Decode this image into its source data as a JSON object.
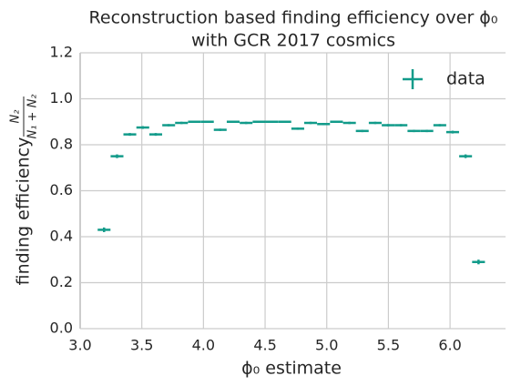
{
  "chart_data": {
    "type": "errorbar",
    "title": "Reconstruction based finding efficiency over ϕ₀",
    "subtitle": "with GCR 2017 cosmics",
    "xlabel": "ϕ₀ estimate",
    "ylabel": "finding efficiency",
    "ylabel_numerator": "N₂",
    "ylabel_denominator": "N₁ + N₂",
    "x": [
      3.194,
      3.299,
      3.403,
      3.508,
      3.613,
      3.718,
      3.822,
      3.927,
      4.032,
      4.136,
      4.241,
      4.346,
      4.451,
      4.555,
      4.66,
      4.765,
      4.869,
      4.974,
      5.079,
      5.184,
      5.288,
      5.393,
      5.498,
      5.602,
      5.707,
      5.812,
      5.917,
      6.021,
      6.126,
      6.231
    ],
    "xerr": 0.052,
    "series": [
      {
        "name": "data",
        "color": "#129b8a",
        "values": [
          0.43,
          0.75,
          0.845,
          0.875,
          0.845,
          0.885,
          0.895,
          0.9,
          0.9,
          0.865,
          0.9,
          0.895,
          0.9,
          0.9,
          0.9,
          0.87,
          0.895,
          0.89,
          0.9,
          0.895,
          0.86,
          0.895,
          0.885,
          0.885,
          0.86,
          0.86,
          0.885,
          0.855,
          0.75,
          0.29
        ],
        "yerr": [
          0.01,
          0.008,
          0.006,
          0.006,
          0.006,
          0.005,
          0.005,
          0.005,
          0.005,
          0.005,
          0.005,
          0.005,
          0.005,
          0.005,
          0.005,
          0.005,
          0.005,
          0.005,
          0.005,
          0.005,
          0.005,
          0.005,
          0.005,
          0.005,
          0.005,
          0.005,
          0.005,
          0.006,
          0.008,
          0.01
        ]
      }
    ],
    "xlim": [
      3.0,
      6.45
    ],
    "xticks": [
      {
        "value": 3.0,
        "label": "3.0"
      },
      3.5,
      {
        "value": 4.0,
        "label": "4.0"
      },
      4.5,
      {
        "value": 5.0,
        "label": "5.0"
      },
      5.5,
      {
        "value": 6.0,
        "label": "6.0"
      }
    ],
    "ylim": [
      0,
      1.2
    ],
    "yticks": [
      {
        "value": 0,
        "label": "0.0"
      },
      0.2,
      0.4,
      0.6,
      0.8,
      {
        "value": 1.0,
        "label": "1.0"
      },
      1.2
    ],
    "grid": true,
    "legend": "upper right"
  }
}
